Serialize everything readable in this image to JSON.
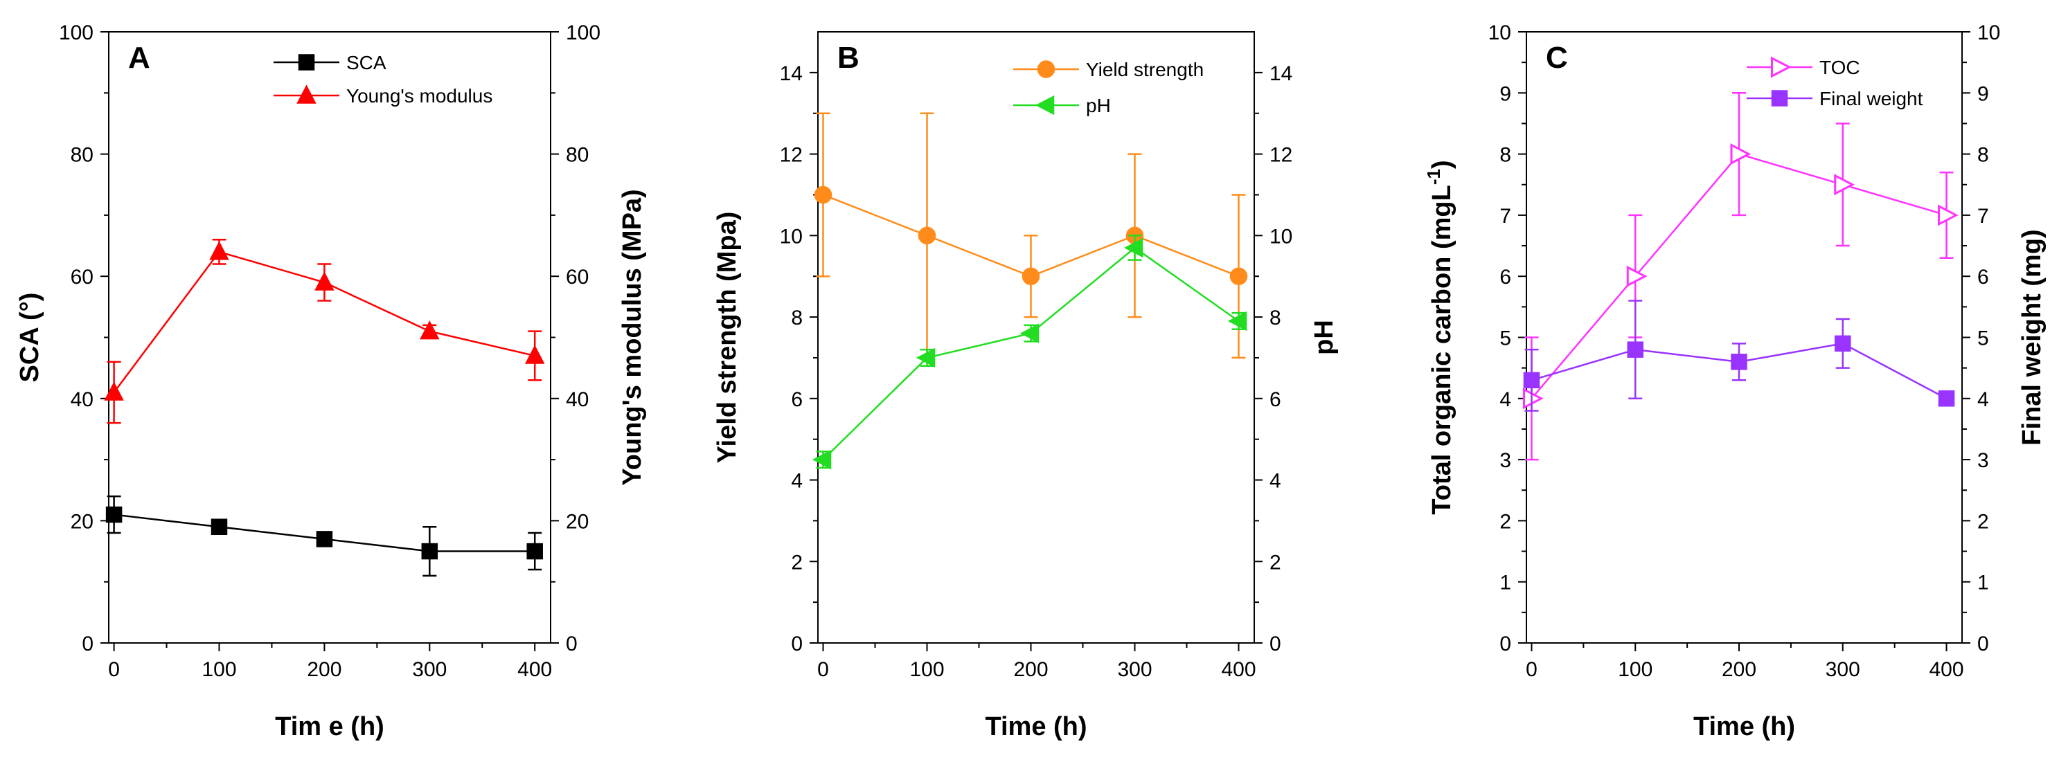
{
  "chart_data": [
    {
      "type": "line",
      "panel": "A",
      "xlabel": "Tim e (h)",
      "ylabel_left": "SCA (°)",
      "ylabel_right": "Young's modulus (MPa)",
      "xlim": [
        -5,
        415
      ],
      "xticks": [
        0,
        100,
        200,
        300,
        400
      ],
      "ylim": [
        0,
        100
      ],
      "yticks": [
        0,
        20,
        40,
        60,
        80,
        100
      ],
      "ylim_right": [
        0,
        100
      ],
      "yticks_right": [
        0,
        20,
        40,
        60,
        80,
        100
      ],
      "legend_position": "top-right",
      "x": [
        0,
        100,
        200,
        300,
        400
      ],
      "series": [
        {
          "name": "SCA",
          "axis": "left",
          "color": "#000000",
          "marker": "square",
          "hollow": false,
          "values": [
            21,
            19,
            17,
            15,
            15
          ],
          "errors": [
            3,
            0.8,
            0.8,
            4,
            3
          ]
        },
        {
          "name": "Young's modulus",
          "axis": "right",
          "color": "#ff0000",
          "marker": "triangle-up",
          "hollow": false,
          "values": [
            41,
            64,
            59,
            51,
            47
          ],
          "errors": [
            5,
            2,
            3,
            1,
            4
          ]
        }
      ]
    },
    {
      "type": "line",
      "panel": "B",
      "xlabel": "Time (h)",
      "ylabel_left": "Yield strength (Mpa)",
      "ylabel_right": "pH",
      "xlim": [
        -5,
        415
      ],
      "xticks": [
        0,
        100,
        200,
        300,
        400
      ],
      "ylim": [
        0,
        15
      ],
      "yticks": [
        0,
        2,
        4,
        6,
        8,
        10,
        12,
        14
      ],
      "ylim_right": [
        0,
        15
      ],
      "yticks_right": [
        0,
        2,
        4,
        6,
        8,
        10,
        12,
        14
      ],
      "legend_position": "top-right",
      "x": [
        0,
        100,
        200,
        300,
        400
      ],
      "series": [
        {
          "name": "Yield strength",
          "axis": "left",
          "color": "#ff8c1a",
          "marker": "circle",
          "hollow": false,
          "values": [
            11,
            10,
            9,
            10,
            9
          ],
          "errors": [
            2,
            3,
            1,
            2,
            2
          ]
        },
        {
          "name": "pH",
          "axis": "right",
          "color": "#22dd22",
          "marker": "triangle-left",
          "hollow": false,
          "values": [
            4.5,
            7.0,
            7.6,
            9.7,
            7.9
          ],
          "errors": [
            0.2,
            0.2,
            0.2,
            0.3,
            0.2
          ]
        }
      ]
    },
    {
      "type": "line",
      "panel": "C",
      "xlabel": "Time (h)",
      "ylabel_left": "Total organic carbon (mgL",
      "ylabel_left_sup": "-1",
      "ylabel_left_close": ")",
      "ylabel_right": "Final weight (mg)",
      "xlim": [
        -5,
        415
      ],
      "xticks": [
        0,
        100,
        200,
        300,
        400
      ],
      "ylim": [
        0,
        10
      ],
      "yticks": [
        0,
        1,
        2,
        3,
        4,
        5,
        6,
        7,
        8,
        9,
        10
      ],
      "ylim_right": [
        0,
        10
      ],
      "yticks_right": [
        0,
        1,
        2,
        3,
        4,
        5,
        6,
        7,
        8,
        9,
        10
      ],
      "legend_position": "top-right",
      "x": [
        0,
        100,
        200,
        300,
        400
      ],
      "series": [
        {
          "name": "TOC",
          "axis": "left",
          "color": "#ff33ff",
          "marker": "triangle-right",
          "hollow": true,
          "values": [
            4.0,
            6.0,
            8.0,
            7.5,
            7.0
          ],
          "errors": [
            1.0,
            1.0,
            1.0,
            1.0,
            0.7
          ]
        },
        {
          "name": "Final weight",
          "axis": "right",
          "color": "#9933ff",
          "marker": "square",
          "hollow": false,
          "values": [
            4.3,
            4.8,
            4.6,
            4.9,
            4.0
          ],
          "errors": [
            0.5,
            0.8,
            0.3,
            0.4,
            0.05
          ]
        }
      ]
    }
  ]
}
